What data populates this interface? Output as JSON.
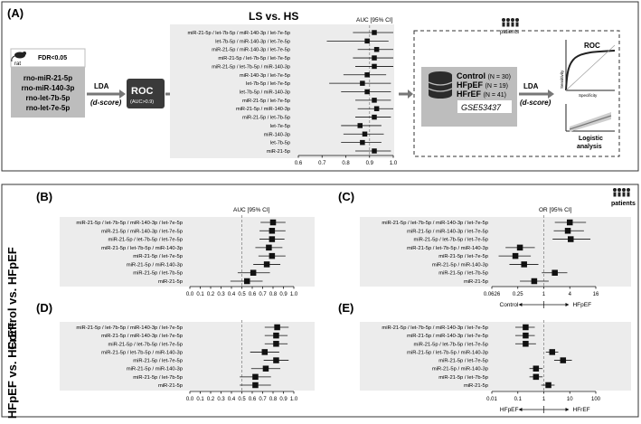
{
  "panelA": {
    "label": "(A)",
    "title": "LS vs. HS",
    "auc_header": "AUC [95% CI]",
    "patients_label": "patients",
    "rat_label": "rat",
    "fdr": "FDR<0.05",
    "mirnas": [
      "rno-miR-21-5p",
      "rno-miR-140-3p",
      "rno-let-7b-5p",
      "rno-let-7e-5p"
    ],
    "lda": "LDA",
    "dscore": "(d-score)",
    "roc_label": "ROC",
    "roc_sub": "(AUC>0.9)",
    "cohort": [
      {
        "name": "Control",
        "n": "(N = 30)"
      },
      {
        "name": "HFpEF",
        "n": "(N = 19)"
      },
      {
        "name": "HFrEF",
        "n": "(N = 41)"
      }
    ],
    "dataset": "GSE53437",
    "lda2": "LDA",
    "dscore2": "(d-score)",
    "roc_box_title": "ROC",
    "sensitivity": "Sensitivity",
    "specificity": "Specificity",
    "logistic": "Logistic\nanalysis"
  },
  "colors": {
    "panel_bg": "#ececec",
    "grey_box": "#bdbdbd",
    "dark": "#3a3a3a",
    "marker": "#111111"
  },
  "chart_data": [
    {
      "id": "A",
      "type": "forest",
      "xlabel": "",
      "header": "AUC [95% CI]",
      "categories": [
        "miR-21-5p / let-7b-5p / miR-140-3p / let-7e-5p",
        "let-7b-5p / miR-140-3p / let-7e-5p",
        "miR-21-5p / miR-140-3p / let-7e-5p",
        "miR-21-5p / let-7b-5p / let-7e-5p",
        "miR-21-5p / let-7b-5p / miR-140-3p",
        "miR-140-3p / let-7e-5p",
        "let-7b-5p / let-7e-5p",
        "let-7b-5p / miR-140-3p",
        "miR-21-5p / let-7e-5p",
        "miR-21-5p / miR-140-3p",
        "miR-21-5p / let-7b-5p",
        "let-7e-5p",
        "miR-140-3p",
        "let-7b-5p",
        "miR-21-5p"
      ],
      "values": [
        0.92,
        0.89,
        0.93,
        0.92,
        0.92,
        0.89,
        0.87,
        0.89,
        0.92,
        0.93,
        0.92,
        0.86,
        0.88,
        0.87,
        0.92
      ],
      "lower": [
        0.83,
        0.72,
        0.85,
        0.83,
        0.84,
        0.79,
        0.73,
        0.78,
        0.84,
        0.85,
        0.84,
        0.78,
        0.79,
        0.78,
        0.84
      ],
      "upper": [
        1.0,
        0.98,
        1.0,
        1.0,
        1.0,
        0.97,
        0.99,
        0.99,
        0.99,
        1.0,
        0.99,
        0.95,
        0.96,
        0.95,
        0.99
      ],
      "ticks": [
        "0.6",
        "0.7",
        "0.8",
        "0.9",
        "1.0"
      ],
      "xlim": [
        0.6,
        1.0
      ],
      "ref": 0.9,
      "log": false
    },
    {
      "id": "B",
      "type": "forest",
      "header": "AUC [95% CI]",
      "categories": [
        "miR-21-5p / let-7b-5p / miR-140-3p / let-7e-5p",
        "miR-21-5p / miR-140-3p / let-7e-5p",
        "miR-21-5p / let-7b-5p / let-7e-5p",
        "miR-21-5p / let-7b-5p / miR-140-3p",
        "miR-21-5p / let-7e-5p",
        "miR-21-5p / miR-140-3p",
        "miR-21-5p / let-7b-5p",
        "miR-21-5p"
      ],
      "values": [
        0.8,
        0.79,
        0.79,
        0.76,
        0.79,
        0.74,
        0.61,
        0.55
      ],
      "lower": [
        0.68,
        0.67,
        0.67,
        0.63,
        0.66,
        0.61,
        0.46,
        0.39
      ],
      "upper": [
        0.92,
        0.92,
        0.91,
        0.89,
        0.92,
        0.87,
        0.77,
        0.7
      ],
      "ticks": [
        "0.0",
        "0.1",
        "0.2",
        "0.3",
        "0.4",
        "0.5",
        "0.6",
        "0.7",
        "0.8",
        "0.9",
        "1.0"
      ],
      "xlim": [
        0,
        1
      ],
      "ref": 0.5,
      "log": false
    },
    {
      "id": "C",
      "type": "forest",
      "header": "OR [95% CI]",
      "categories": [
        "miR-21-5p / let-7b-5p / miR-140-3p / let-7e-5p",
        "miR-21-5p / miR-140-3p / let-7e-5p",
        "miR-21-5p / let-7b-5p / let-7e-5p",
        "miR-21-5p / let-7b-5p / miR-140-3p",
        "miR-21-5p / let-7e-5p",
        "miR-21-5p / miR-140-3p",
        "miR-21-5p / let-7b-5p",
        "miR-21-5p"
      ],
      "values": [
        4.0,
        3.6,
        4.2,
        0.28,
        0.22,
        0.35,
        1.8,
        0.6
      ],
      "lower": [
        1.8,
        1.7,
        1.6,
        0.13,
        0.09,
        0.16,
        0.9,
        0.28
      ],
      "upper": [
        9.5,
        8.5,
        12.0,
        0.62,
        0.5,
        0.75,
        3.5,
        1.3
      ],
      "ticks": [
        "0.0626",
        "0.25",
        "1",
        "4",
        "16"
      ],
      "xlim": [
        0.0626,
        16
      ],
      "ref": 1,
      "log": true,
      "below_left": "Control",
      "below_right": "HFpEF"
    },
    {
      "id": "D",
      "type": "forest",
      "header": "",
      "categories": [
        "miR-21-5p / let-7b-5p / miR-140-3p / let-7e-5p",
        "miR-21-5p / miR-140-3p / let-7e-5p",
        "miR-21-5p / let-7b-5p / let-7e-5p",
        "miR-21-5p / let-7b-5p / miR-140-3p",
        "miR-21-5p / let-7e-5p",
        "miR-21-5p / miR-140-3p",
        "miR-21-5p / let-7b-5p",
        "miR-21-5p"
      ],
      "values": [
        0.84,
        0.83,
        0.83,
        0.72,
        0.83,
        0.73,
        0.63,
        0.63
      ],
      "lower": [
        0.72,
        0.72,
        0.72,
        0.58,
        0.71,
        0.59,
        0.48,
        0.48
      ],
      "upper": [
        0.95,
        0.94,
        0.94,
        0.86,
        0.95,
        0.87,
        0.78,
        0.78
      ],
      "ticks": [
        "0.0",
        "0.1",
        "0.2",
        "0.3",
        "0.4",
        "0.5",
        "0.6",
        "0.7",
        "0.8",
        "0.9",
        "1.0"
      ],
      "xlim": [
        0,
        1
      ],
      "ref": 0.5,
      "log": false
    },
    {
      "id": "E",
      "type": "forest",
      "header": "",
      "categories": [
        "miR-21-5p / let-7b-5p / miR-140-3p / let-7e-5p",
        "miR-21-5p / miR-140-3p / let-7e-5p",
        "miR-21-5p / let-7b-5p / let-7e-5p",
        "miR-21-5p / let-7b-5p / miR-140-3p",
        "miR-21-5p / let-7e-5p",
        "miR-21-5p / miR-140-3p",
        "miR-21-5p / let-7b-5p",
        "miR-21-5p"
      ],
      "values": [
        0.2,
        0.2,
        0.2,
        2.1,
        5.5,
        0.5,
        0.5,
        1.5
      ],
      "lower": [
        0.08,
        0.08,
        0.08,
        1.2,
        2.5,
        0.28,
        0.28,
        0.8
      ],
      "upper": [
        0.45,
        0.45,
        0.5,
        3.6,
        12.0,
        0.9,
        0.9,
        2.6
      ],
      "ticks": [
        "0.01",
        "0.1",
        "1",
        "10",
        "100"
      ],
      "xlim": [
        0.01,
        100
      ],
      "ref": 1,
      "log": true,
      "below_left": "HFpEF",
      "below_right": "HFrEF"
    }
  ],
  "panels": {
    "B": "(B)",
    "C": "(C)",
    "D": "(D)",
    "E": "(E)",
    "patients": "patients"
  },
  "side": {
    "control_hfpef": "Control vs. HFpEF",
    "hfpef_hfref": "HFpEF vs. HFrEF"
  }
}
